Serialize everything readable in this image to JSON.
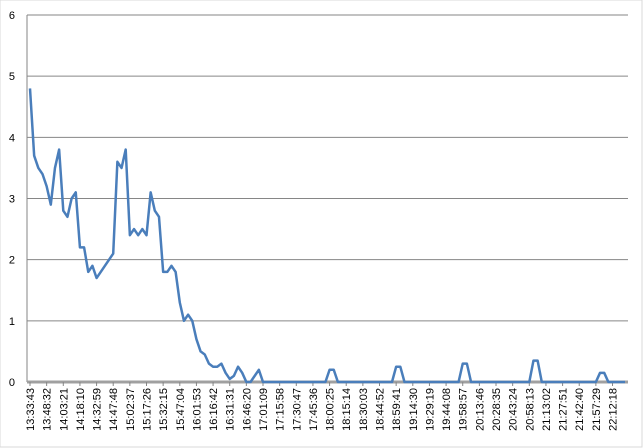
{
  "chart_data": {
    "type": "line",
    "categories": [
      "13:33:43",
      null,
      null,
      null,
      "13:48:32",
      null,
      null,
      null,
      "14:03:21",
      null,
      null,
      null,
      "14:18:10",
      null,
      null,
      null,
      "14:32:59",
      null,
      null,
      null,
      "14:47:48",
      null,
      null,
      null,
      "15:02:37",
      null,
      null,
      null,
      "15:17:26",
      null,
      null,
      null,
      "15:32:15",
      null,
      null,
      null,
      "15:47:04",
      null,
      null,
      null,
      "16:01:53",
      null,
      null,
      null,
      "16:16:42",
      null,
      null,
      null,
      "16:31:31",
      null,
      null,
      null,
      "16:46:20",
      null,
      null,
      null,
      "17:01:09",
      null,
      null,
      null,
      "17:15:58",
      null,
      null,
      null,
      "17:30:47",
      null,
      null,
      null,
      "17:45:36",
      null,
      null,
      null,
      "18:00:25",
      null,
      null,
      null,
      "18:15:14",
      null,
      null,
      null,
      "18:30:03",
      null,
      null,
      null,
      "18:44:52",
      null,
      null,
      null,
      "18:59:41",
      null,
      null,
      null,
      "19:14:30",
      null,
      null,
      null,
      "19:29:19",
      null,
      null,
      null,
      "19:44:08",
      null,
      null,
      null,
      "19:58:57",
      null,
      null,
      null,
      "20:13:46",
      null,
      null,
      null,
      "20:28:35",
      null,
      null,
      null,
      "20:43:24",
      null,
      null,
      null,
      "20:58:13",
      null,
      null,
      null,
      "21:13:02",
      null,
      null,
      null,
      "21:27:51",
      null,
      null,
      null,
      "21:42:40",
      null,
      null,
      null,
      "21:57:29",
      null,
      null,
      null,
      "22:12:18",
      null,
      null,
      null
    ],
    "series": [
      {
        "color": "#4a7ebb",
        "values": [
          4.8,
          3.7,
          3.5,
          3.4,
          3.2,
          2.9,
          3.5,
          3.8,
          2.8,
          2.7,
          3.0,
          3.1,
          2.2,
          2.2,
          1.8,
          1.9,
          1.7,
          1.8,
          1.9,
          2.0,
          2.1,
          3.6,
          3.5,
          3.8,
          2.4,
          2.5,
          2.4,
          2.5,
          2.4,
          3.1,
          2.8,
          2.7,
          1.8,
          1.8,
          1.9,
          1.8,
          1.3,
          1.0,
          1.1,
          1.0,
          0.7,
          0.5,
          0.45,
          0.3,
          0.25,
          0.25,
          0.3,
          0.15,
          0.05,
          0.1,
          0.25,
          0.15,
          0,
          0,
          0.1,
          0.2,
          0,
          0,
          0,
          0,
          0,
          0,
          0,
          0,
          0,
          0,
          0,
          0,
          0,
          0,
          0,
          0,
          0.2,
          0.2,
          0,
          0,
          0,
          0,
          0,
          0,
          0,
          0,
          0,
          0,
          0,
          0,
          0,
          0,
          0.25,
          0.25,
          0,
          0,
          0,
          0,
          0,
          0,
          0,
          0,
          0,
          0,
          0,
          0,
          0,
          0,
          0.3,
          0.3,
          0,
          0,
          0,
          0,
          0,
          0,
          0,
          0,
          0,
          0,
          0,
          0,
          0,
          0,
          0,
          0.35,
          0.35,
          0,
          0,
          0,
          0,
          0,
          0,
          0,
          0,
          0,
          0,
          0,
          0,
          0,
          0,
          0.15,
          0.15,
          0,
          0,
          0,
          0,
          0
        ]
      }
    ],
    "ylim": [
      0,
      6
    ],
    "yticks": [
      0,
      1,
      2,
      3,
      4,
      5,
      6
    ],
    "grid": true
  }
}
